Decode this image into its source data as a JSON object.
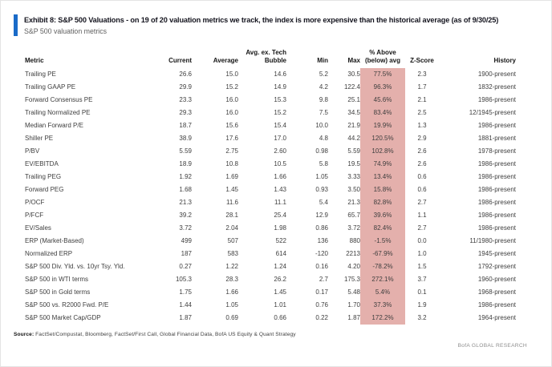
{
  "header": {
    "title": "Exhibit 8: S&P 500 Valuations - on 19 of 20 valuation metrics we track, the index is more expensive than the historical average (as of 9/30/25)",
    "subtitle": "S&P 500 valuation metrics"
  },
  "colors": {
    "accent_blue": "#1a6bc8",
    "highlight_pink": "#e4b0ac"
  },
  "table": {
    "columns": [
      {
        "id": "metric",
        "lines": [
          "Metric"
        ]
      },
      {
        "id": "current",
        "lines": [
          "Current"
        ]
      },
      {
        "id": "average",
        "lines": [
          "Average"
        ]
      },
      {
        "id": "avg-ex-tech-bubble",
        "lines": [
          "Avg. ex. Tech",
          "Bubble"
        ]
      },
      {
        "id": "min",
        "lines": [
          "Min"
        ]
      },
      {
        "id": "max",
        "lines": [
          "Max"
        ]
      },
      {
        "id": "pct-above-below-avg",
        "lines": [
          "% Above",
          "(below) avg"
        ]
      },
      {
        "id": "z-score",
        "lines": [
          "Z-Score"
        ]
      },
      {
        "id": "history",
        "lines": [
          "History"
        ]
      }
    ],
    "rows": [
      [
        "Trailing PE",
        "26.6",
        "15.0",
        "14.6",
        "5.2",
        "30.5",
        "77.5%",
        "2.3",
        "1900-present"
      ],
      [
        "Trailing GAAP PE",
        "29.9",
        "15.2",
        "14.9",
        "4.2",
        "122.4",
        "96.3%",
        "1.7",
        "1832-present"
      ],
      [
        "Forward Consensus PE",
        "23.3",
        "16.0",
        "15.3",
        "9.8",
        "25.1",
        "45.6%",
        "2.1",
        "1986-present"
      ],
      [
        "Trailing Normalized PE",
        "29.3",
        "16.0",
        "15.2",
        "7.5",
        "34.5",
        "83.4%",
        "2.5",
        "12/1945-present"
      ],
      [
        "Median Forward P/E",
        "18.7",
        "15.6",
        "15.4",
        "10.0",
        "21.9",
        "19.9%",
        "1.3",
        "1986-present"
      ],
      [
        "Shiller PE",
        "38.9",
        "17.6",
        "17.0",
        "4.8",
        "44.2",
        "120.5%",
        "2.9",
        "1881-present"
      ],
      [
        "P/BV",
        "5.59",
        "2.75",
        "2.60",
        "0.98",
        "5.59",
        "102.8%",
        "2.6",
        "1978-present"
      ],
      [
        "EV/EBITDA",
        "18.9",
        "10.8",
        "10.5",
        "5.8",
        "19.5",
        "74.9%",
        "2.6",
        "1986-present"
      ],
      [
        "Trailing PEG",
        "1.92",
        "1.69",
        "1.66",
        "1.05",
        "3.33",
        "13.4%",
        "0.6",
        "1986-present"
      ],
      [
        "Forward PEG",
        "1.68",
        "1.45",
        "1.43",
        "0.93",
        "3.50",
        "15.8%",
        "0.6",
        "1986-present"
      ],
      [
        "P/OCF",
        "21.3",
        "11.6",
        "11.1",
        "5.4",
        "21.3",
        "82.8%",
        "2.7",
        "1986-present"
      ],
      [
        "P/FCF",
        "39.2",
        "28.1",
        "25.4",
        "12.9",
        "65.7",
        "39.6%",
        "1.1",
        "1986-present"
      ],
      [
        "EV/Sales",
        "3.72",
        "2.04",
        "1.98",
        "0.86",
        "3.72",
        "82.4%",
        "2.7",
        "1986-present"
      ],
      [
        "ERP (Market-Based)",
        "499",
        "507",
        "522",
        "136",
        "880",
        "-1.5%",
        "0.0",
        "11/1980-present"
      ],
      [
        "Normalized ERP",
        "187",
        "583",
        "614",
        "-120",
        "2213",
        "-67.9%",
        "1.0",
        "1945-present"
      ],
      [
        "S&P 500 Div. Yld. vs. 10yr Tsy. Yld.",
        "0.27",
        "1.22",
        "1.24",
        "0.16",
        "4.20",
        "-78.2%",
        "1.5",
        "1792-present"
      ],
      [
        "S&P 500 in WTI terms",
        "105.3",
        "28.3",
        "26.2",
        "2.7",
        "175.3",
        "272.1%",
        "3.7",
        "1960-present"
      ],
      [
        "S&P 500 in Gold terms",
        "1.75",
        "1.66",
        "1.45",
        "0.17",
        "5.48",
        "5.4%",
        "0.1",
        "1968-present"
      ],
      [
        "S&P 500 vs. R2000 Fwd. P/E",
        "1.44",
        "1.05",
        "1.01",
        "0.76",
        "1.70",
        "37.3%",
        "1.9",
        "1986-present"
      ],
      [
        "S&P 500 Market Cap/GDP",
        "1.87",
        "0.69",
        "0.66",
        "0.22",
        "1.87",
        "172.2%",
        "3.2",
        "1964-present"
      ]
    ]
  },
  "footer": {
    "source_label": "Source:",
    "source_text": " FactSet/Compustat, Bloomberg, FactSet/First Call, Global Financial Data, BofA US Equity & Quant Strategy",
    "brand": "BofA GLOBAL RESEARCH"
  }
}
